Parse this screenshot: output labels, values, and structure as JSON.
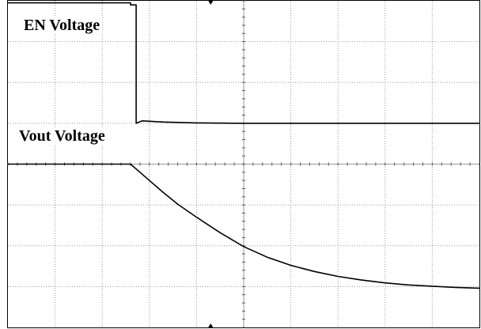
{
  "chart_data": {
    "type": "line",
    "title": "",
    "xlabel": "",
    "ylabel": "",
    "grid": true,
    "grid_divisions": {
      "x": 10,
      "y": 8
    },
    "xlim": [
      0,
      10
    ],
    "ylim": [
      0,
      8
    ],
    "colors": {
      "trace": "#000000",
      "grid": "#9a9a9a",
      "frame": "#000000",
      "background": "#ffffff"
    },
    "labels": {
      "en": "EN Voltage",
      "vout": "Vout Voltage"
    },
    "series": [
      {
        "name": "EN Voltage",
        "points": [
          [
            0.0,
            7.95
          ],
          [
            2.6,
            7.95
          ],
          [
            2.6,
            7.9
          ],
          [
            2.72,
            7.9
          ],
          [
            2.72,
            5.0
          ],
          [
            2.85,
            5.06
          ],
          [
            3.3,
            5.03
          ],
          [
            4.0,
            5.01
          ],
          [
            5.0,
            5.0
          ],
          [
            10.0,
            5.0
          ]
        ]
      },
      {
        "name": "Vout Voltage",
        "points": [
          [
            0.0,
            4.0
          ],
          [
            2.6,
            4.0
          ],
          [
            2.8,
            3.8
          ],
          [
            3.0,
            3.6
          ],
          [
            3.3,
            3.3
          ],
          [
            3.6,
            3.02
          ],
          [
            4.0,
            2.7
          ],
          [
            4.5,
            2.32
          ],
          [
            5.0,
            1.98
          ],
          [
            5.5,
            1.72
          ],
          [
            6.0,
            1.52
          ],
          [
            6.5,
            1.37
          ],
          [
            7.0,
            1.25
          ],
          [
            7.5,
            1.16
          ],
          [
            8.0,
            1.09
          ],
          [
            8.5,
            1.04
          ],
          [
            9.0,
            1.01
          ],
          [
            9.5,
            0.98
          ],
          [
            10.0,
            0.96
          ]
        ]
      }
    ]
  }
}
